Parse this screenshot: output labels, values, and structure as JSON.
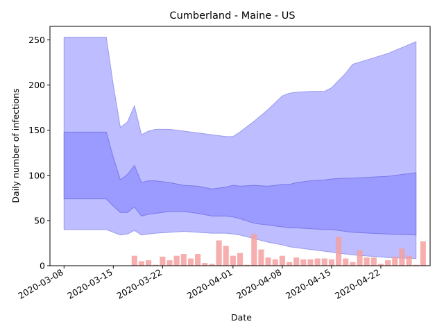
{
  "chart_data": {
    "type": "area",
    "title": "Cumberland - Maine - US",
    "xlabel": "Date",
    "ylabel": "Daily number of infections",
    "x_start": "2020-03-07",
    "xlim": [
      "2020-03-06",
      "2020-04-29"
    ],
    "ylim": [
      0,
      265
    ],
    "x_ticks": [
      {
        "date": "2020-03-08",
        "label": "2020-03-08"
      },
      {
        "date": "2020-03-15",
        "label": "2020-03-15"
      },
      {
        "date": "2020-03-22",
        "label": "2020-03-22"
      },
      {
        "date": "2020-04-01",
        "label": "2020-04-01"
      },
      {
        "date": "2020-04-08",
        "label": "2020-04-08"
      },
      {
        "date": "2020-04-15",
        "label": "2020-04-15"
      },
      {
        "date": "2020-04-22",
        "label": "2020-04-22"
      }
    ],
    "y_ticks": [
      0,
      50,
      100,
      150,
      200,
      250
    ],
    "grid": false,
    "bands": [
      {
        "role": "outer",
        "color": "#bdbdff",
        "edge_color": "#9a9aee",
        "x": [
          "2020-03-08",
          "2020-03-14",
          "2020-03-15",
          "2020-03-16",
          "2020-03-17",
          "2020-03-18",
          "2020-03-19",
          "2020-03-20",
          "2020-03-21",
          "2020-03-23",
          "2020-03-25",
          "2020-03-27",
          "2020-03-29",
          "2020-03-31",
          "2020-04-01",
          "2020-04-02",
          "2020-04-04",
          "2020-04-06",
          "2020-04-08",
          "2020-04-09",
          "2020-04-10",
          "2020-04-12",
          "2020-04-14",
          "2020-04-15",
          "2020-04-17",
          "2020-04-18",
          "2020-04-23",
          "2020-04-27"
        ],
        "upper": [
          253,
          253,
          200,
          153,
          159,
          177,
          145,
          149,
          151,
          151,
          149,
          147,
          145,
          143,
          143,
          148,
          160,
          173,
          188,
          191,
          192,
          193,
          193,
          197,
          213,
          223,
          235,
          248
        ],
        "lower": [
          40,
          40,
          37,
          34,
          35,
          39,
          34,
          35,
          36,
          37,
          38,
          37,
          36,
          36,
          35,
          34,
          30,
          26,
          23,
          21,
          20,
          18,
          16,
          15,
          13,
          12,
          9,
          8
        ]
      },
      {
        "role": "inner",
        "color": "#9a9aff",
        "edge_color": "#7a7ae8",
        "x": [
          "2020-03-08",
          "2020-03-14",
          "2020-03-15",
          "2020-03-16",
          "2020-03-17",
          "2020-03-18",
          "2020-03-19",
          "2020-03-20",
          "2020-03-21",
          "2020-03-23",
          "2020-03-25",
          "2020-03-27",
          "2020-03-29",
          "2020-03-31",
          "2020-04-01",
          "2020-04-02",
          "2020-04-04",
          "2020-04-06",
          "2020-04-08",
          "2020-04-09",
          "2020-04-10",
          "2020-04-12",
          "2020-04-14",
          "2020-04-15",
          "2020-04-17",
          "2020-04-18",
          "2020-04-23",
          "2020-04-27"
        ],
        "upper": [
          148,
          148,
          120,
          95,
          101,
          111,
          92,
          94,
          94,
          92,
          89,
          88,
          85,
          87,
          89,
          88,
          89,
          88,
          90,
          90,
          92,
          94,
          95,
          96,
          97,
          97,
          99,
          103
        ],
        "lower": [
          74,
          74,
          66,
          59,
          59,
          65,
          55,
          57,
          58,
          60,
          60,
          58,
          55,
          55,
          54,
          52,
          47,
          45,
          43,
          42,
          42,
          41,
          40,
          40,
          38,
          37,
          35,
          34
        ]
      }
    ],
    "bars": {
      "color": "#f4a0a0",
      "x": [
        "2020-03-18",
        "2020-03-19",
        "2020-03-20",
        "2020-03-21",
        "2020-03-22",
        "2020-03-23",
        "2020-03-24",
        "2020-03-25",
        "2020-03-26",
        "2020-03-27",
        "2020-03-28",
        "2020-03-29",
        "2020-03-30",
        "2020-03-31",
        "2020-04-01",
        "2020-04-02",
        "2020-04-03",
        "2020-04-04",
        "2020-04-05",
        "2020-04-06",
        "2020-04-07",
        "2020-04-08",
        "2020-04-09",
        "2020-04-10",
        "2020-04-11",
        "2020-04-12",
        "2020-04-13",
        "2020-04-14",
        "2020-04-15",
        "2020-04-16",
        "2020-04-17",
        "2020-04-18",
        "2020-04-19",
        "2020-04-20",
        "2020-04-21",
        "2020-04-22",
        "2020-04-23",
        "2020-04-24",
        "2020-04-25",
        "2020-04-26",
        "2020-04-27",
        "2020-04-28"
      ],
      "values": [
        11,
        5,
        6,
        1,
        10,
        6,
        11,
        13,
        8,
        13,
        3,
        2,
        28,
        22,
        11,
        14,
        1,
        35,
        18,
        9,
        7,
        11,
        4,
        9,
        7,
        7,
        8,
        8,
        7,
        32,
        8,
        4,
        17,
        9,
        9,
        2,
        6,
        10,
        19,
        11,
        1,
        27
      ]
    }
  }
}
